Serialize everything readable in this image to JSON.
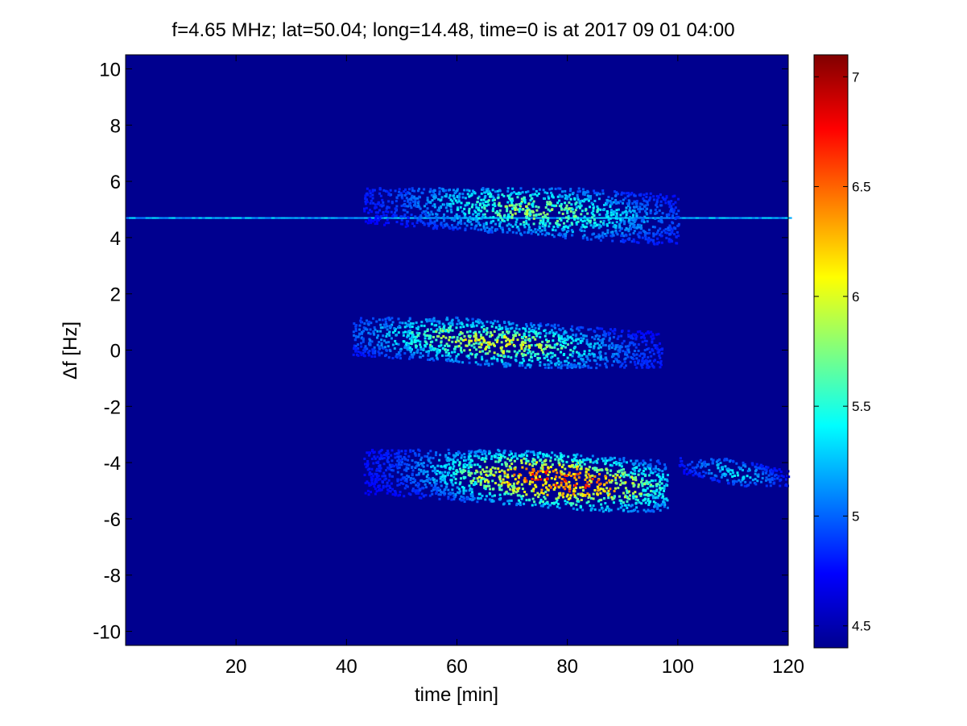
{
  "chart_data": {
    "type": "heatmap",
    "title": "f=4.65 MHz;  lat=50.04; long=14.48, time=0 is at 2017 09 01 04:00",
    "xlabel": "time [min]",
    "ylabel": "Δf [Hz]",
    "xlim": [
      0,
      120
    ],
    "ylim": [
      -10.5,
      10.5
    ],
    "xticks": [
      20,
      40,
      60,
      80,
      100,
      120
    ],
    "xtick_labels": [
      "20",
      "40",
      "60",
      "80",
      "100",
      "120"
    ],
    "yticks": [
      10,
      8,
      6,
      4,
      2,
      0,
      -2,
      -4,
      -6,
      -8,
      -10
    ],
    "ytick_labels": [
      "10",
      "8",
      "6",
      "4",
      "2",
      "0",
      "-2",
      "-4",
      "-6",
      "-8",
      "-10"
    ],
    "colormap": "jet",
    "background_color": "#00008f",
    "colorbar": {
      "clim": [
        4.4,
        7.1
      ],
      "ticks": [
        7,
        6.5,
        6,
        5.5,
        5,
        4.5
      ],
      "tick_labels": [
        "7",
        "6.5",
        "6",
        "5.5",
        "5",
        "4.5"
      ]
    },
    "features": [
      {
        "kind": "line",
        "y": 4.7,
        "x": [
          0,
          120
        ],
        "level": 5.2
      },
      {
        "kind": "cluster",
        "x": [
          43,
          100
        ],
        "y": [
          3.8,
          5.8
        ],
        "peak_x": 74,
        "peak_y": 5.0,
        "peak_level": 6.0
      },
      {
        "kind": "cluster",
        "x": [
          41,
          97
        ],
        "y": [
          -0.6,
          1.2
        ],
        "peak_x": 66,
        "peak_y": 0.3,
        "peak_level": 6.3
      },
      {
        "kind": "cluster",
        "x": [
          43,
          98
        ],
        "y": [
          -5.7,
          -3.5
        ],
        "peak_x": 78,
        "peak_y": -4.6,
        "peak_level": 7.0
      },
      {
        "kind": "cluster",
        "x": [
          100,
          120
        ],
        "y": [
          -4.8,
          -3.8
        ],
        "peak_x": 110,
        "peak_y": -4.3,
        "peak_level": 5.5
      }
    ]
  }
}
